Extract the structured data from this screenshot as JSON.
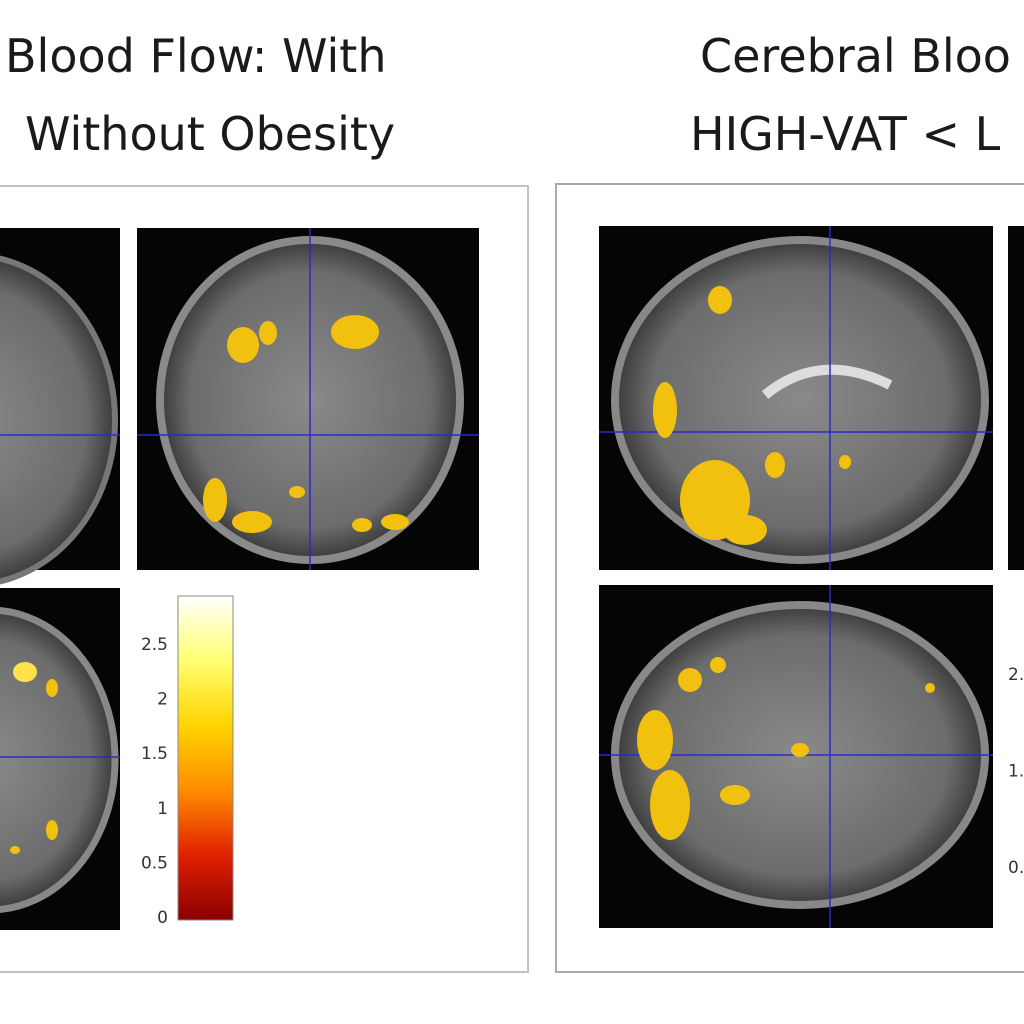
{
  "left_panel": {
    "title_lines": [
      "Blood Flow: With",
      "Without Obesity"
    ],
    "colorbar_ticks": [
      0,
      0.5,
      1,
      1.5,
      2,
      2.5
    ]
  },
  "right_panel": {
    "title_lines": [
      "Cerebral Bloo",
      "HIGH-VAT < L"
    ],
    "colorbar_ticks": [
      "0.",
      "1.",
      "2."
    ]
  }
}
